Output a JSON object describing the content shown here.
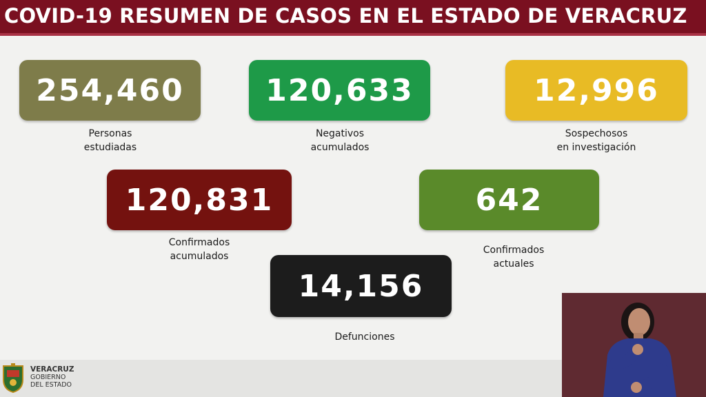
{
  "header": {
    "title": "COVID-19 RESUMEN DE CASOS EN EL ESTADO DE VERACRUZ"
  },
  "stats": {
    "personas": {
      "value": "254,460",
      "label_1": "Personas",
      "label_2": "estudiadas",
      "color": "#7e7c4a"
    },
    "negativos": {
      "value": "120,633",
      "label_1": "Negativos",
      "label_2": "acumulados",
      "color": "#1e9a48"
    },
    "sospechosos": {
      "value": "12,996",
      "label_1": "Sospechosos",
      "label_2": "en investigación",
      "color": "#e8bb25"
    },
    "confirmados_acumulados": {
      "value": "120,831",
      "label_1": "Confirmados",
      "label_2": "acumulados",
      "color": "#74120f"
    },
    "confirmados_actuales": {
      "value": "642",
      "label_1": "Confirmados",
      "label_2": "actuales",
      "color": "#5a8a2a"
    },
    "defunciones": {
      "value": "14,156",
      "label_1": "Defunciones",
      "color": "#1c1c1c"
    }
  },
  "footer": {
    "gov_line_1": "VERACRUZ",
    "gov_line_2": "GOBIERNO",
    "gov_line_3": "DEL ESTADO",
    "logo_icon": "veracruz-coat-of-arms-icon"
  },
  "interpreter": {
    "icon": "sign-language-interpreter-video"
  }
}
